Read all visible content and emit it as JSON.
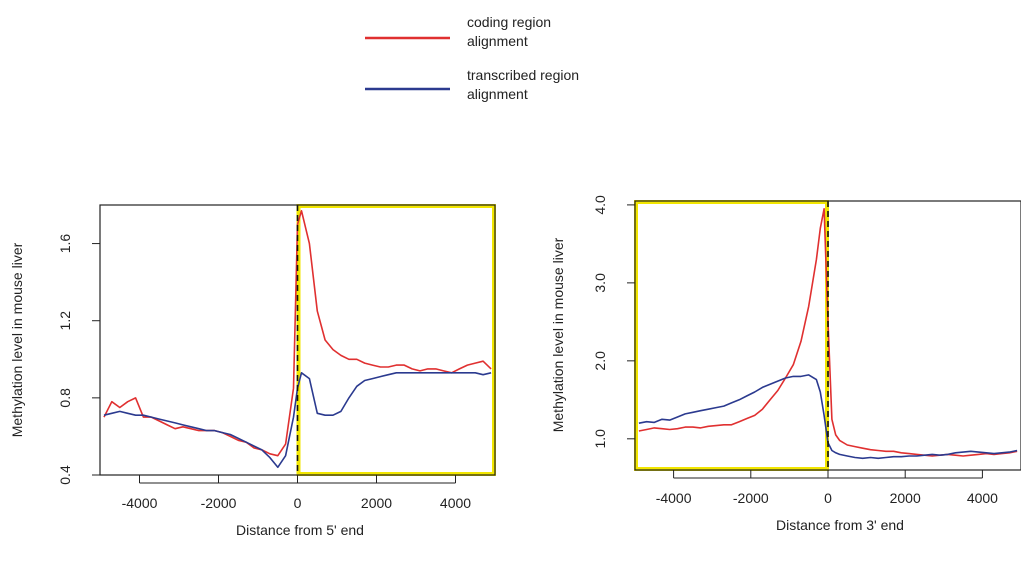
{
  "legend": {
    "items": [
      {
        "lines": [
          "coding region",
          "alignment"
        ],
        "color": "#e03030"
      },
      {
        "lines": [
          "transcribed region",
          "alignment"
        ],
        "color": "#2b3a8f"
      }
    ]
  },
  "colors": {
    "coding": "#e03030",
    "transcribed": "#2b3a8f",
    "highlight": "#f2e600",
    "axis": "#222222"
  },
  "chart_data": [
    {
      "type": "line",
      "xlabel": "Distance from 5' end",
      "ylabel": "Methylation level in mouse liver",
      "xlim": [
        -5000,
        5000
      ],
      "ylim": [
        0.4,
        1.8
      ],
      "xticks": [
        -4000,
        -2000,
        0,
        2000,
        4000
      ],
      "xtick_labels": [
        "-4000",
        "-2000",
        "0",
        "2000",
        "4000"
      ],
      "yticks": [
        0.4,
        0.8,
        1.2,
        1.6
      ],
      "ytick_labels": [
        "0.4",
        "0.8",
        "1.2",
        "1.6"
      ],
      "highlight_region": {
        "x": [
          0,
          5000
        ],
        "y": [
          0.4,
          1.8
        ]
      },
      "reference_line": {
        "x": 0,
        "style": "dashed"
      },
      "series": [
        {
          "color": "#e03030",
          "x": [
            -4900,
            -4700,
            -4500,
            -4300,
            -4100,
            -3900,
            -3700,
            -3500,
            -3300,
            -3100,
            -2900,
            -2700,
            -2500,
            -2300,
            -2100,
            -1900,
            -1700,
            -1500,
            -1300,
            -1100,
            -900,
            -700,
            -500,
            -300,
            -100,
            0,
            100,
            300,
            500,
            700,
            900,
            1100,
            1300,
            1500,
            1700,
            1900,
            2100,
            2300,
            2500,
            2700,
            2900,
            3100,
            3300,
            3500,
            3700,
            3900,
            4100,
            4300,
            4500,
            4700,
            4900
          ],
          "y": [
            0.7,
            0.78,
            0.75,
            0.78,
            0.8,
            0.7,
            0.7,
            0.68,
            0.66,
            0.64,
            0.65,
            0.64,
            0.63,
            0.63,
            0.63,
            0.62,
            0.6,
            0.58,
            0.57,
            0.54,
            0.53,
            0.51,
            0.5,
            0.56,
            0.85,
            1.7,
            1.77,
            1.6,
            1.25,
            1.1,
            1.05,
            1.02,
            1.0,
            1.0,
            0.98,
            0.97,
            0.96,
            0.96,
            0.97,
            0.97,
            0.95,
            0.94,
            0.95,
            0.95,
            0.94,
            0.93,
            0.95,
            0.97,
            0.98,
            0.99,
            0.95
          ]
        },
        {
          "color": "#2b3a8f",
          "x": [
            -4900,
            -4700,
            -4500,
            -4300,
            -4100,
            -3900,
            -3700,
            -3500,
            -3300,
            -3100,
            -2900,
            -2700,
            -2500,
            -2300,
            -2100,
            -1900,
            -1700,
            -1500,
            -1300,
            -1100,
            -900,
            -700,
            -500,
            -300,
            -100,
            0,
            100,
            300,
            500,
            700,
            900,
            1100,
            1300,
            1500,
            1700,
            1900,
            2100,
            2300,
            2500,
            2700,
            2900,
            3100,
            3300,
            3500,
            3700,
            3900,
            4100,
            4300,
            4500,
            4700,
            4900
          ],
          "y": [
            0.71,
            0.72,
            0.73,
            0.72,
            0.71,
            0.71,
            0.7,
            0.69,
            0.68,
            0.67,
            0.66,
            0.65,
            0.64,
            0.63,
            0.63,
            0.62,
            0.61,
            0.59,
            0.57,
            0.55,
            0.53,
            0.49,
            0.44,
            0.5,
            0.7,
            0.85,
            0.93,
            0.9,
            0.72,
            0.71,
            0.71,
            0.73,
            0.8,
            0.86,
            0.89,
            0.9,
            0.91,
            0.92,
            0.93,
            0.93,
            0.93,
            0.93,
            0.93,
            0.93,
            0.93,
            0.93,
            0.93,
            0.93,
            0.93,
            0.92,
            0.93
          ]
        }
      ]
    },
    {
      "type": "line",
      "xlabel": "Distance from 3' end",
      "ylabel": "Methylation level in mouse liver",
      "xlim": [
        -5000,
        5000
      ],
      "ylim": [
        0.6,
        4.05
      ],
      "xticks": [
        -4000,
        -2000,
        0,
        2000,
        4000
      ],
      "xtick_labels": [
        "-4000",
        "-2000",
        "0",
        "2000",
        "4000"
      ],
      "yticks": [
        1.0,
        2.0,
        3.0,
        4.0
      ],
      "ytick_labels": [
        "1.0",
        "2.0",
        "3.0",
        "4.0"
      ],
      "highlight_region": {
        "x": [
          -5000,
          0
        ],
        "y": [
          0.6,
          4.05
        ]
      },
      "reference_line": {
        "x": 0,
        "style": "dashed"
      },
      "series": [
        {
          "color": "#e03030",
          "x": [
            -4900,
            -4700,
            -4500,
            -4300,
            -4100,
            -3900,
            -3700,
            -3500,
            -3300,
            -3100,
            -2900,
            -2700,
            -2500,
            -2300,
            -2100,
            -1900,
            -1700,
            -1500,
            -1300,
            -1100,
            -900,
            -700,
            -500,
            -300,
            -200,
            -100,
            0,
            100,
            200,
            300,
            500,
            700,
            900,
            1100,
            1300,
            1500,
            1700,
            1900,
            2100,
            2300,
            2500,
            2700,
            2900,
            3100,
            3300,
            3500,
            3700,
            3900,
            4100,
            4300,
            4500,
            4700,
            4900
          ],
          "y": [
            1.1,
            1.12,
            1.14,
            1.13,
            1.12,
            1.13,
            1.15,
            1.15,
            1.14,
            1.16,
            1.17,
            1.18,
            1.18,
            1.22,
            1.26,
            1.3,
            1.38,
            1.5,
            1.62,
            1.78,
            1.95,
            2.25,
            2.7,
            3.3,
            3.7,
            3.95,
            2.5,
            1.25,
            1.05,
            0.98,
            0.92,
            0.9,
            0.88,
            0.86,
            0.85,
            0.84,
            0.84,
            0.82,
            0.81,
            0.8,
            0.79,
            0.78,
            0.79,
            0.8,
            0.79,
            0.78,
            0.79,
            0.8,
            0.81,
            0.8,
            0.81,
            0.82,
            0.84
          ]
        },
        {
          "color": "#2b3a8f",
          "x": [
            -4900,
            -4700,
            -4500,
            -4300,
            -4100,
            -3900,
            -3700,
            -3500,
            -3300,
            -3100,
            -2900,
            -2700,
            -2500,
            -2300,
            -2100,
            -1900,
            -1700,
            -1500,
            -1300,
            -1100,
            -900,
            -700,
            -500,
            -300,
            -200,
            -100,
            0,
            100,
            200,
            300,
            500,
            700,
            900,
            1100,
            1300,
            1500,
            1700,
            1900,
            2100,
            2300,
            2500,
            2700,
            2900,
            3100,
            3300,
            3500,
            3700,
            3900,
            4100,
            4300,
            4500,
            4700,
            4900
          ],
          "y": [
            1.2,
            1.22,
            1.21,
            1.25,
            1.24,
            1.28,
            1.32,
            1.34,
            1.36,
            1.38,
            1.4,
            1.42,
            1.46,
            1.5,
            1.55,
            1.6,
            1.66,
            1.7,
            1.74,
            1.78,
            1.8,
            1.8,
            1.82,
            1.76,
            1.6,
            1.3,
            0.95,
            0.85,
            0.82,
            0.8,
            0.78,
            0.76,
            0.75,
            0.76,
            0.75,
            0.76,
            0.77,
            0.77,
            0.78,
            0.78,
            0.79,
            0.8,
            0.79,
            0.8,
            0.82,
            0.83,
            0.84,
            0.83,
            0.82,
            0.81,
            0.82,
            0.83,
            0.85
          ]
        }
      ]
    }
  ]
}
